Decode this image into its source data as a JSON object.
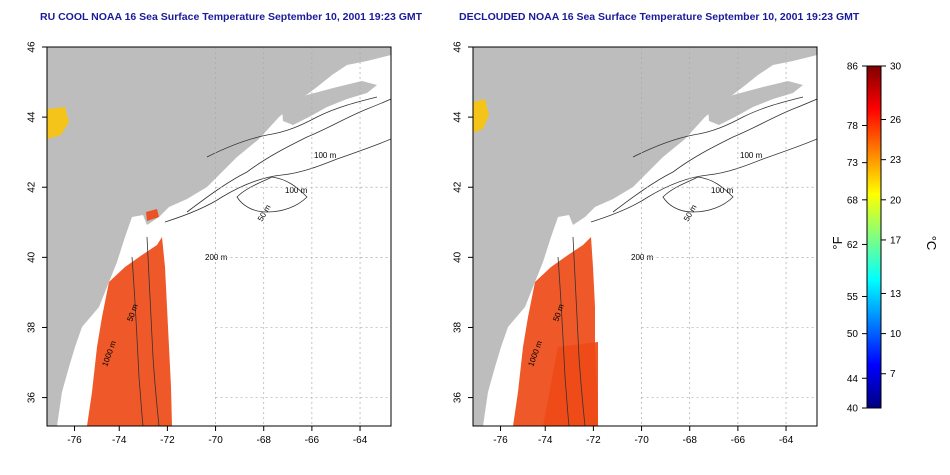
{
  "maps": [
    {
      "title": "RU COOL NOAA 16 Sea Surface Temperature September 10, 2001 19:23 GMT",
      "lat_ticks": [
        "46",
        "44",
        "42",
        "40",
        "38",
        "36"
      ],
      "lon_ticks": [
        "-76",
        "-74",
        "-72",
        "-70",
        "-68",
        "-66",
        "-64"
      ],
      "contour_labels": [
        "100 m",
        "100 m",
        "50 m",
        "200 m",
        "50 m",
        "1000 m"
      ]
    },
    {
      "title": "DECLOUDED NOAA 16 Sea Surface Temperature September 10, 2001 19:23 GMT",
      "lat_ticks": [
        "46",
        "44",
        "42",
        "40",
        "38",
        "36"
      ],
      "lon_ticks": [
        "-76",
        "-74",
        "-72",
        "-70",
        "-68",
        "-66",
        "-64"
      ],
      "contour_labels": [
        "100 m",
        "100 m",
        "50 m",
        "200 m",
        "50 m",
        "1000 m"
      ]
    }
  ],
  "colorbar": {
    "fahrenheit_unit": "°F",
    "celsius_unit": "°C",
    "fahrenheit_ticks": [
      "86",
      "78",
      "73",
      "68",
      "62",
      "55",
      "50",
      "44",
      "40"
    ],
    "celsius_ticks": [
      "30",
      "26",
      "23",
      "20",
      "17",
      "13",
      "10",
      "7"
    ],
    "colors": [
      "#00007f",
      "#0000ff",
      "#0080ff",
      "#00ffff",
      "#80ff80",
      "#ffff00",
      "#ff8000",
      "#ff0000",
      "#7f0000"
    ]
  },
  "colors": {
    "land": "#bdbdbd",
    "warm_water": "#ee4a17",
    "title": "#1a1a9c"
  }
}
